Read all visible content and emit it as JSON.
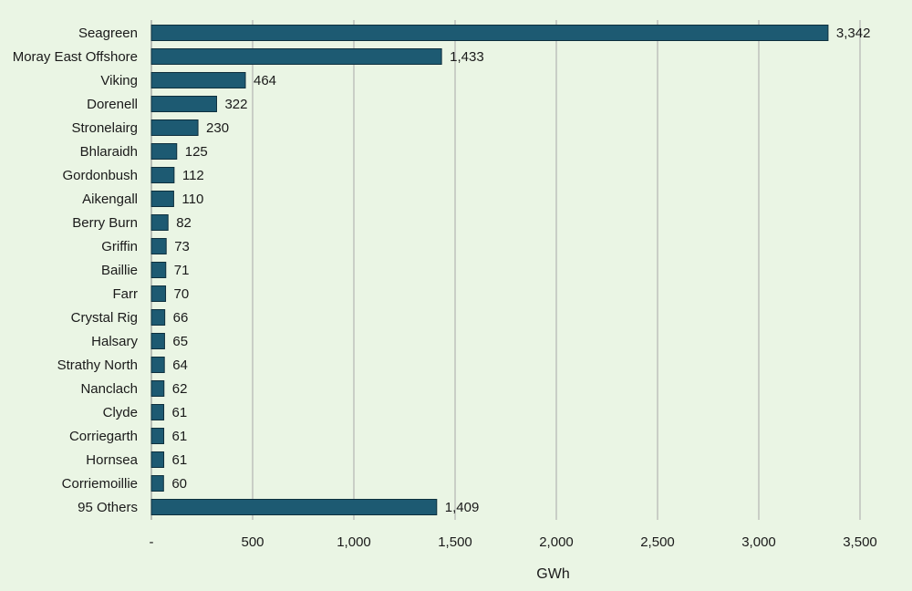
{
  "chart_data": {
    "type": "bar",
    "orientation": "horizontal",
    "categories": [
      "Seagreen",
      "Moray East Offshore",
      "Viking",
      "Dorenell",
      "Stronelairg",
      "Bhlaraidh",
      "Gordonbush",
      "Aikengall",
      "Berry Burn",
      "Griffin",
      "Baillie",
      "Farr",
      "Crystal Rig",
      "Halsary",
      "Strathy North",
      "Nanclach",
      "Clyde",
      "Corriegarth",
      "Hornsea",
      "Corriemoillie",
      "95 Others"
    ],
    "values": [
      3342,
      1433,
      464,
      322,
      230,
      125,
      112,
      110,
      82,
      73,
      71,
      70,
      66,
      65,
      64,
      62,
      61,
      61,
      61,
      60,
      1409
    ],
    "value_labels": [
      "3,342",
      "1,433",
      "464",
      "322",
      "230",
      "125",
      "112",
      "110",
      "82",
      "73",
      "71",
      "70",
      "66",
      "65",
      "64",
      "62",
      "61",
      "61",
      "61",
      "60",
      "1,409"
    ],
    "xlabel": "GWh",
    "ylabel": "",
    "title": "",
    "xlim": [
      0,
      3500
    ],
    "xticks": [
      0,
      500,
      1000,
      1500,
      2000,
      2500,
      3000,
      3500
    ],
    "xtick_labels": [
      "-",
      "500",
      "1,000",
      "1,500",
      "2,000",
      "2,500",
      "3,000",
      "3,500"
    ],
    "grid": "vertical",
    "legend": "none",
    "colors": {
      "bar": "#1d5a72",
      "bar_edge": "#0e2f3d",
      "grid": "#a8a8a8",
      "background": "#eaf5e4"
    }
  }
}
